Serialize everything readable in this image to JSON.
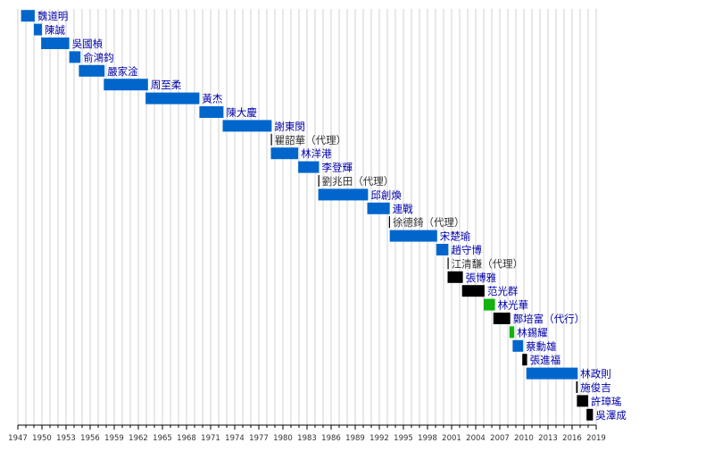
{
  "chart_data": {
    "type": "bar",
    "orientation": "horizontal-timeline",
    "grid": true,
    "xlim": [
      1947,
      2019
    ],
    "x_ticks": [
      1947,
      1950,
      1953,
      1956,
      1959,
      1962,
      1965,
      1968,
      1971,
      1974,
      1977,
      1980,
      1983,
      1986,
      1989,
      1992,
      1995,
      1998,
      2001,
      2004,
      2007,
      2010,
      2013,
      2016,
      2019
    ],
    "x_tick_labels": [
      "1947",
      "1950",
      "1953",
      "1956",
      "1959",
      "1962",
      "1965",
      "1968",
      "1971",
      "1974",
      "1977",
      "1980",
      "1983",
      "1986",
      "1989",
      "1992",
      "1995",
      "1998",
      "2001",
      "2004",
      "2007",
      "2010",
      "2013",
      "2016",
      "2019"
    ],
    "colors": {
      "kmt": "#0066cc",
      "dpp": "#000000",
      "green": "#11b211",
      "acting": "#000000",
      "label_blue": "#0000aa",
      "label_acting": "#333333",
      "grid": "#d0d0d0",
      "axis": "#000000"
    },
    "series": [
      {
        "label": "魏道明",
        "start": 1947.4,
        "end": 1949.1,
        "kind": "kmt"
      },
      {
        "label": "陳誠",
        "start": 1949.0,
        "end": 1950.0,
        "kind": "kmt"
      },
      {
        "label": "吳國楨",
        "start": 1949.9,
        "end": 1953.4,
        "kind": "kmt"
      },
      {
        "label": "俞鴻鈞",
        "start": 1953.4,
        "end": 1954.8,
        "kind": "kmt"
      },
      {
        "label": "嚴家淦",
        "start": 1954.6,
        "end": 1957.8,
        "kind": "kmt"
      },
      {
        "label": "周至柔",
        "start": 1957.7,
        "end": 1963.2,
        "kind": "kmt"
      },
      {
        "label": "黃杰",
        "start": 1962.9,
        "end": 1969.6,
        "kind": "kmt"
      },
      {
        "label": "陳大慶",
        "start": 1969.6,
        "end": 1972.6,
        "kind": "kmt"
      },
      {
        "label": "謝東閔",
        "start": 1972.5,
        "end": 1978.6,
        "kind": "kmt"
      },
      {
        "label": "瞿韶華（代理）",
        "start": 1978.5,
        "end": 1978.7,
        "kind": "acting"
      },
      {
        "label": "林洋港",
        "start": 1978.5,
        "end": 1981.9,
        "kind": "kmt"
      },
      {
        "label": "李登輝",
        "start": 1981.9,
        "end": 1984.5,
        "kind": "kmt"
      },
      {
        "label": "劉兆田（代理）",
        "start": 1984.4,
        "end": 1984.6,
        "kind": "acting"
      },
      {
        "label": "邱創煥",
        "start": 1984.4,
        "end": 1990.6,
        "kind": "kmt"
      },
      {
        "label": "連戰",
        "start": 1990.5,
        "end": 1993.3,
        "kind": "kmt"
      },
      {
        "label": "徐德錡（代理）",
        "start": 1993.2,
        "end": 1993.4,
        "kind": "acting"
      },
      {
        "label": "宋楚瑜",
        "start": 1993.3,
        "end": 1999.2,
        "kind": "kmt"
      },
      {
        "label": "趙守博",
        "start": 1999.1,
        "end": 2000.6,
        "kind": "kmt"
      },
      {
        "label": "江清馦（代理）",
        "start": 2000.5,
        "end": 2000.7,
        "kind": "acting"
      },
      {
        "label": "張博雅",
        "start": 2000.5,
        "end": 2002.4,
        "kind": "dpp"
      },
      {
        "label": "范光群",
        "start": 2002.3,
        "end": 2005.1,
        "kind": "dpp"
      },
      {
        "label": "林光華",
        "start": 2005.0,
        "end": 2006.4,
        "kind": "green"
      },
      {
        "label": "鄭培富（代行）",
        "start": 2006.2,
        "end": 2008.3,
        "kind": "dpp"
      },
      {
        "label": "林錫耀",
        "start": 2008.2,
        "end": 2008.8,
        "kind": "green"
      },
      {
        "label": "蔡勳雄",
        "start": 2008.6,
        "end": 2009.9,
        "kind": "kmt"
      },
      {
        "label": "張進福",
        "start": 2009.8,
        "end": 2010.4,
        "kind": "dpp"
      },
      {
        "label": "林政則",
        "start": 2010.3,
        "end": 2016.7,
        "kind": "kmt"
      },
      {
        "label": "施俊吉",
        "start": 2016.5,
        "end": 2016.7,
        "kind": "dpp"
      },
      {
        "label": "許璋瑤",
        "start": 2016.6,
        "end": 2018.0,
        "kind": "dpp"
      },
      {
        "label": "吳澤成",
        "start": 2017.8,
        "end": 2018.6,
        "kind": "dpp"
      }
    ]
  }
}
